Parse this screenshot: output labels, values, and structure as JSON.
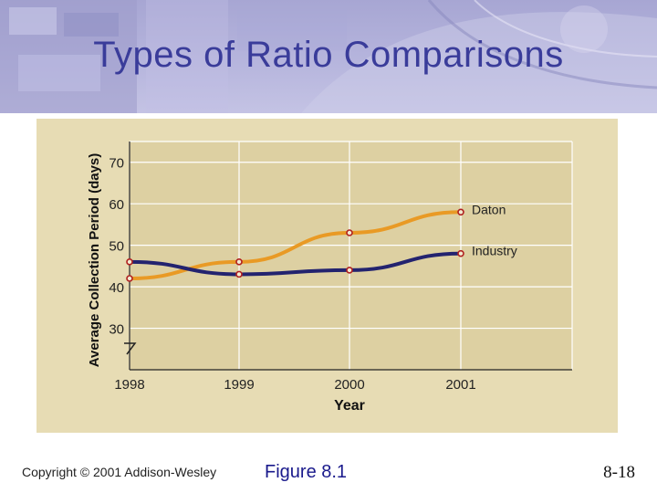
{
  "slide": {
    "title": "Types of Ratio Comparisons",
    "copyright": "Copyright © 2001 Addison-Wesley",
    "figure_label": "Figure 8.1",
    "page_number": "8-18"
  },
  "colors": {
    "title": "#3a3c9a",
    "banner": "#b3b2dc",
    "panel": "#e7dcb4",
    "daton": "#e99a25",
    "industry": "#23236f",
    "marker": "#b02020"
  },
  "chart_data": {
    "type": "line",
    "title": "",
    "xlabel": "Year",
    "ylabel": "Average Collection Period (days)",
    "categories": [
      "1998",
      "1999",
      "2000",
      "2001"
    ],
    "yticks": [
      30,
      40,
      50,
      60,
      70
    ],
    "ylim": [
      20,
      75
    ],
    "axis_break": true,
    "grid": true,
    "series": [
      {
        "name": "Daton",
        "values": [
          42,
          46,
          53,
          58
        ]
      },
      {
        "name": "Industry",
        "values": [
          46,
          43,
          44,
          48
        ]
      }
    ]
  }
}
